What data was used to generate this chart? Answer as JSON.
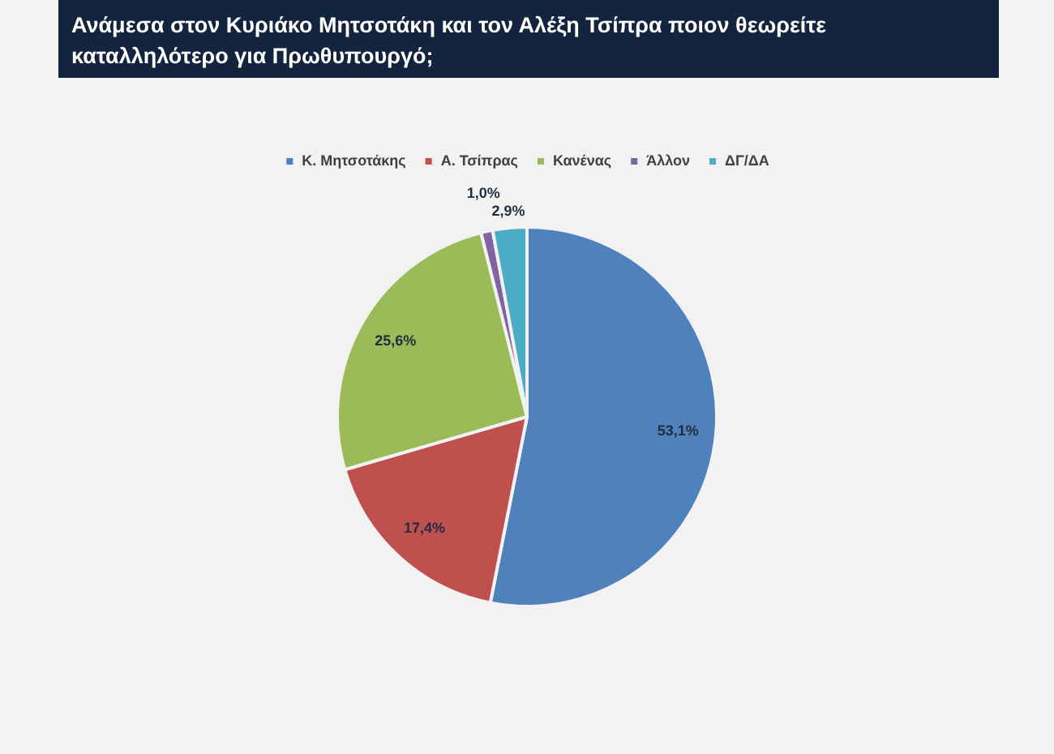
{
  "chart_data": {
    "type": "pie",
    "title": "Ανάμεσα στον Κυριάκο Μητσοτάκη και τον Αλέξη Τσίπρα ποιον θεωρείτε καταλληλότερο για Πρωθυπουργό;",
    "categories": [
      "Κ. Μητσοτάκης",
      "Α. Τσίπρας",
      "Κανένας",
      "Άλλον",
      "ΔΓ/ΔΑ"
    ],
    "values": [
      53.1,
      17.4,
      25.6,
      1.0,
      2.9
    ],
    "colors": [
      "#4f81bd",
      "#c0504d",
      "#9bbb59",
      "#8064a2",
      "#4bacc6"
    ],
    "value_labels": [
      "53,1%",
      "17,4%",
      "25,6%",
      "1,0%",
      "2,9%"
    ],
    "legend": "top"
  }
}
